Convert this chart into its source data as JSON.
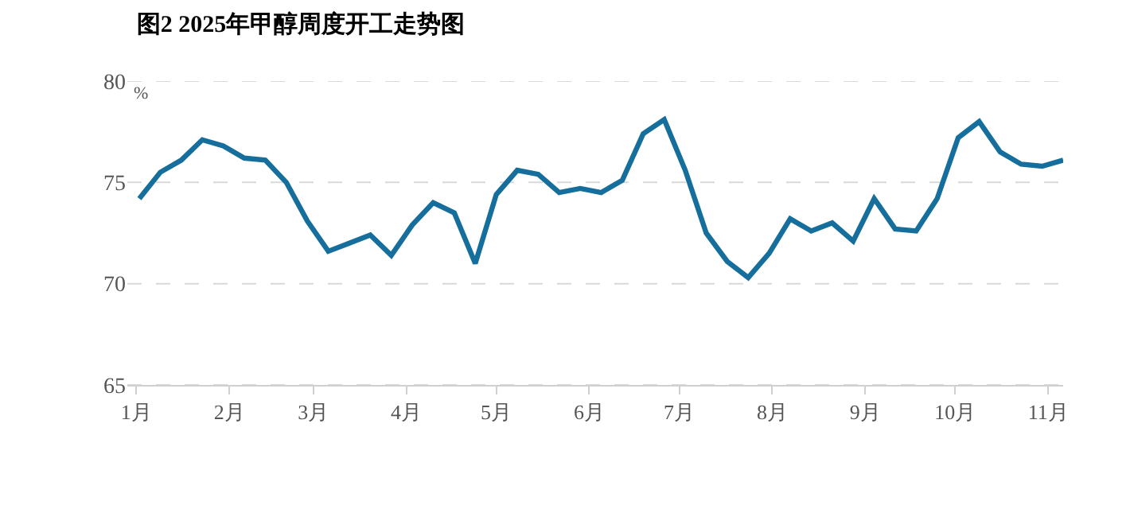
{
  "chart_data": {
    "type": "line",
    "title": "图2 2025年甲醇周度开工走势图",
    "ylabel": "%",
    "x": [
      "2025-01-02",
      "2025-01-09",
      "2025-01-16",
      "2025-01-23",
      "2025-01-30",
      "2025-02-06",
      "2025-02-13",
      "2025-02-20",
      "2025-02-27",
      "2025-03-06",
      "2025-03-13",
      "2025-03-20",
      "2025-03-27",
      "2025-04-03",
      "2025-04-10",
      "2025-04-17",
      "2025-04-24",
      "2025-05-01",
      "2025-05-08",
      "2025-05-15",
      "2025-05-22",
      "2025-05-29",
      "2025-06-05",
      "2025-06-12",
      "2025-06-19",
      "2025-06-26",
      "2025-07-03",
      "2025-07-10",
      "2025-07-17",
      "2025-07-24",
      "2025-07-31",
      "2025-08-07",
      "2025-08-14",
      "2025-08-21",
      "2025-08-28",
      "2025-09-04",
      "2025-09-11",
      "2025-09-18",
      "2025-09-25",
      "2025-10-02",
      "2025-10-09",
      "2025-10-16",
      "2025-10-23",
      "2025-10-30",
      "2025-11-06"
    ],
    "series": [
      {
        "color": "#156e9b",
        "values": [
          74.2,
          75.5,
          76.1,
          77.1,
          76.8,
          76.2,
          76.1,
          75.0,
          73.1,
          71.6,
          72.0,
          72.4,
          71.4,
          72.9,
          74.0,
          73.5,
          71.0,
          74.4,
          75.6,
          75.4,
          74.5,
          74.7,
          74.5,
          75.1,
          77.4,
          78.1,
          75.6,
          72.5,
          71.1,
          70.3,
          71.5,
          73.2,
          72.6,
          73.0,
          72.1,
          74.2,
          72.7,
          72.6,
          74.2,
          77.2,
          78.0,
          76.5,
          75.9,
          75.8,
          76.1
        ]
      }
    ],
    "xlim": [
      "2024-12-29",
      "2025-11-06"
    ],
    "xticks": [
      {
        "value": "2025-01-01",
        "label": "1月"
      },
      {
        "value": "2025-02-01",
        "label": "2月"
      },
      {
        "value": "2025-03-01",
        "label": "3月"
      },
      {
        "value": "2025-04-01",
        "label": "4月"
      },
      {
        "value": "2025-05-01",
        "label": "5月"
      },
      {
        "value": "2025-06-01",
        "label": "6月"
      },
      {
        "value": "2025-07-01",
        "label": "7月"
      },
      {
        "value": "2025-08-01",
        "label": "8月"
      },
      {
        "value": "2025-09-01",
        "label": "9月"
      },
      {
        "value": "2025-10-01",
        "label": "10月"
      },
      {
        "value": "2025-11-01",
        "label": "11月"
      }
    ],
    "ylim": [
      65,
      80
    ],
    "yticks": [
      65,
      70,
      75,
      80
    ],
    "grid": "y",
    "marker": "none",
    "line_style": "solid"
  }
}
